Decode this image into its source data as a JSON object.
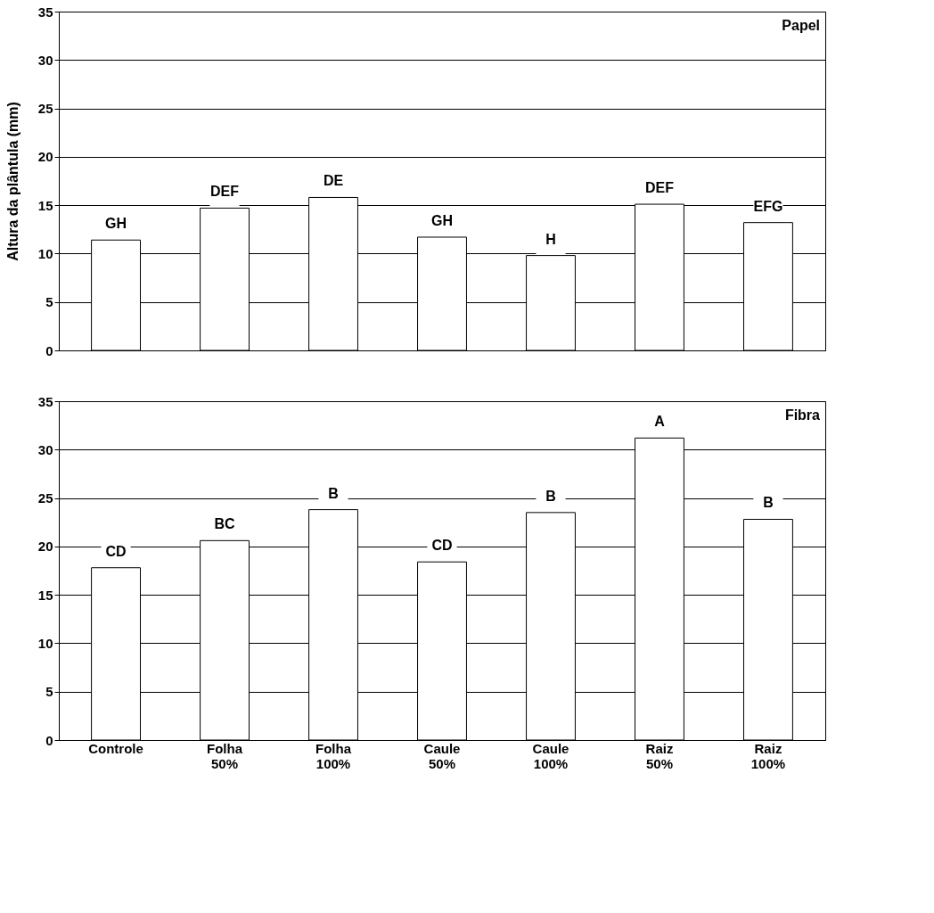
{
  "chart_data": [
    {
      "type": "bar",
      "title": "Papel",
      "ylabel": "Altura da plântula (mm)",
      "values": [
        11.4,
        14.7,
        15.8,
        11.7,
        9.8,
        15.1,
        13.2
      ],
      "color": "#ffffff",
      "value_labels": [
        "GH",
        "DEF",
        "DE",
        "GH",
        "H",
        "DEF",
        "EFG"
      ],
      "ylim": [
        0,
        35
      ],
      "yticks": [
        0,
        5,
        10,
        15,
        20,
        25,
        30,
        35
      ],
      "grid": "y",
      "tick_labels": "y"
    },
    {
      "type": "bar",
      "title": "Fibra",
      "categories": [
        "Controle",
        "Folha 50%",
        "Folha 100%",
        "Caule 50%",
        "Caule 100%",
        "Raiz 50%",
        "Raiz 100%"
      ],
      "values": [
        17.8,
        20.6,
        23.8,
        18.4,
        23.5,
        31.2,
        22.8
      ],
      "color": "#ffffff",
      "value_labels": [
        "CD",
        "BC",
        "B",
        "CD",
        "B",
        "A",
        "B"
      ],
      "ylim": [
        0,
        35
      ],
      "yticks": [
        0,
        5,
        10,
        15,
        20,
        25,
        30,
        35
      ],
      "grid": "y"
    }
  ]
}
